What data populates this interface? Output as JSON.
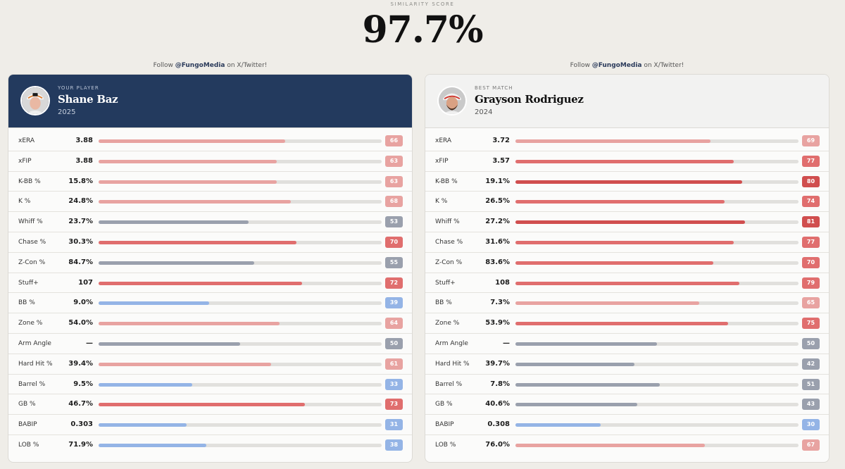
{
  "header": {
    "label": "SIMILARITY SCORE",
    "score": "97.7%"
  },
  "follow": {
    "prefix": "Follow ",
    "handle": "@FungoMedia",
    "suffix": " on X/Twitter!"
  },
  "colors": {
    "high": "#e06e6e",
    "mid_high": "#e8a3a1",
    "mid": "#9aa0ad",
    "low": "#94b4e6",
    "very_high": "#d04e4e"
  },
  "cards": [
    {
      "tag": "YOUR PLAYER",
      "name": "Shane Baz",
      "year": "2025",
      "avatar_icon": "player-headshot-orioles",
      "stats": [
        {
          "label": "xERA",
          "value": "3.88",
          "pct": 66
        },
        {
          "label": "xFIP",
          "value": "3.88",
          "pct": 63
        },
        {
          "label": "K-BB %",
          "value": "15.8%",
          "pct": 63
        },
        {
          "label": "K %",
          "value": "24.8%",
          "pct": 68
        },
        {
          "label": "Whiff %",
          "value": "23.7%",
          "pct": 53
        },
        {
          "label": "Chase %",
          "value": "30.3%",
          "pct": 70
        },
        {
          "label": "Z-Con %",
          "value": "84.7%",
          "pct": 55
        },
        {
          "label": "Stuff+",
          "value": "107",
          "pct": 72
        },
        {
          "label": "BB %",
          "value": "9.0%",
          "pct": 39
        },
        {
          "label": "Zone %",
          "value": "54.0%",
          "pct": 64
        },
        {
          "label": "Arm Angle",
          "value": "—",
          "pct": 50
        },
        {
          "label": "Hard Hit %",
          "value": "39.4%",
          "pct": 61
        },
        {
          "label": "Barrel %",
          "value": "9.5%",
          "pct": 33
        },
        {
          "label": "GB %",
          "value": "46.7%",
          "pct": 73
        },
        {
          "label": "BABIP",
          "value": "0.303",
          "pct": 31
        },
        {
          "label": "LOB %",
          "value": "71.9%",
          "pct": 38
        }
      ]
    },
    {
      "tag": "BEST MATCH",
      "name": "Grayson Rodriguez",
      "year": "2024",
      "avatar_icon": "player-headshot-bearded",
      "stats": [
        {
          "label": "xERA",
          "value": "3.72",
          "pct": 69
        },
        {
          "label": "xFIP",
          "value": "3.57",
          "pct": 77
        },
        {
          "label": "K-BB %",
          "value": "19.1%",
          "pct": 80
        },
        {
          "label": "K %",
          "value": "26.5%",
          "pct": 74
        },
        {
          "label": "Whiff %",
          "value": "27.2%",
          "pct": 81
        },
        {
          "label": "Chase %",
          "value": "31.6%",
          "pct": 77
        },
        {
          "label": "Z-Con %",
          "value": "83.6%",
          "pct": 70
        },
        {
          "label": "Stuff+",
          "value": "108",
          "pct": 79
        },
        {
          "label": "BB %",
          "value": "7.3%",
          "pct": 65
        },
        {
          "label": "Zone %",
          "value": "53.9%",
          "pct": 75
        },
        {
          "label": "Arm Angle",
          "value": "—",
          "pct": 50
        },
        {
          "label": "Hard Hit %",
          "value": "39.7%",
          "pct": 42
        },
        {
          "label": "Barrel %",
          "value": "7.8%",
          "pct": 51
        },
        {
          "label": "GB %",
          "value": "40.6%",
          "pct": 43
        },
        {
          "label": "BABIP",
          "value": "0.308",
          "pct": 30
        },
        {
          "label": "LOB %",
          "value": "76.0%",
          "pct": 67
        }
      ]
    }
  ]
}
